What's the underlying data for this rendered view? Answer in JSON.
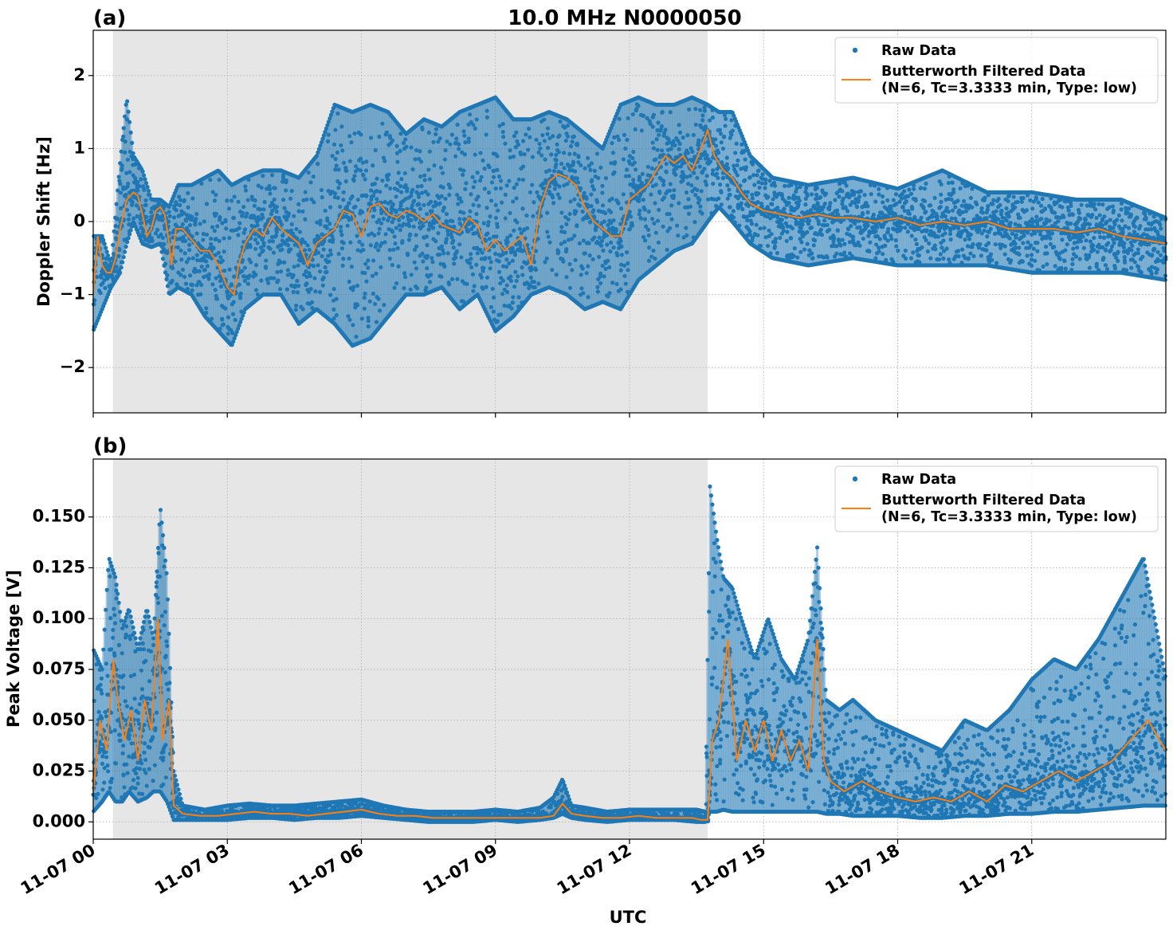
{
  "figure": {
    "title": "10.0 MHz N0000050",
    "xlabel": "UTC",
    "colors": {
      "raw": "#1f77b4",
      "filtered": "#ff7f0e",
      "shade": "#e6e6e6"
    }
  },
  "chart_data": [
    {
      "panel": "(a)",
      "type": "scatter",
      "title": "10.0 MHz N0000050",
      "ylabel": "Doppler Shift [Hz]",
      "xlabel": "",
      "x_unit": "hours UTC on 11-07",
      "xlim": [
        0,
        24
      ],
      "ylim": [
        -2.62,
        2.62
      ],
      "yticks": [
        2,
        1,
        0,
        -1,
        -2
      ],
      "ytick_labels": [
        "2",
        "1",
        "0",
        "−1",
        "−2"
      ],
      "shaded_interval": [
        0.44,
        13.75
      ],
      "grid": true,
      "legend": {
        "placement": "top-right",
        "entries": [
          "Raw Data",
          "Butterworth Filtered Data",
          "(N=6, Tc=3.3333 min, Type: low)"
        ]
      },
      "series": [
        {
          "name": "Butterworth Filtered Data (N=6, Tc=3.3333 min, Type: low)",
          "kind": "line",
          "x": [
            0,
            0.1,
            0.2,
            0.3,
            0.4,
            0.5,
            0.6,
            0.75,
            0.9,
            1.0,
            1.1,
            1.2,
            1.3,
            1.4,
            1.5,
            1.6,
            1.7,
            1.75,
            1.85,
            2.0,
            2.2,
            2.4,
            2.6,
            2.8,
            3.0,
            3.15,
            3.25,
            3.4,
            3.6,
            3.8,
            4.0,
            4.2,
            4.4,
            4.6,
            4.8,
            5.0,
            5.2,
            5.4,
            5.6,
            5.8,
            6.0,
            6.2,
            6.4,
            6.6,
            6.8,
            7.0,
            7.2,
            7.4,
            7.6,
            7.8,
            8.0,
            8.2,
            8.4,
            8.6,
            8.8,
            9.0,
            9.2,
            9.4,
            9.6,
            9.8,
            10.0,
            10.2,
            10.4,
            10.6,
            10.8,
            11.0,
            11.2,
            11.4,
            11.6,
            11.8,
            12.0,
            12.2,
            12.4,
            12.6,
            12.8,
            13.0,
            13.2,
            13.4,
            13.6,
            13.75,
            13.9,
            14.1,
            14.3,
            14.5,
            14.7,
            15.0,
            15.4,
            15.8,
            16.2,
            16.6,
            17.0,
            17.5,
            18.0,
            18.5,
            19.0,
            19.5,
            20.0,
            20.5,
            21.0,
            21.5,
            22.0,
            22.5,
            23.0,
            23.5,
            24.0
          ],
          "y": [
            -1.0,
            -0.2,
            -0.6,
            -0.7,
            -0.7,
            -0.5,
            -0.1,
            0.3,
            0.4,
            0.35,
            0.1,
            -0.2,
            -0.1,
            0.15,
            0.2,
            0.1,
            -0.3,
            -0.6,
            -0.1,
            -0.1,
            -0.25,
            -0.4,
            -0.4,
            -0.6,
            -0.9,
            -1.0,
            -0.6,
            -0.3,
            -0.1,
            -0.2,
            0.05,
            -0.1,
            -0.2,
            -0.3,
            -0.6,
            -0.3,
            -0.2,
            -0.1,
            0.15,
            0.1,
            -0.2,
            0.2,
            0.25,
            0.1,
            0.05,
            0.15,
            0.1,
            0.0,
            0.1,
            -0.05,
            -0.1,
            -0.15,
            0.05,
            -0.05,
            -0.4,
            -0.25,
            -0.4,
            -0.3,
            -0.2,
            -0.6,
            0.2,
            0.55,
            0.65,
            0.6,
            0.5,
            0.2,
            0.0,
            -0.1,
            -0.2,
            -0.2,
            0.3,
            0.4,
            0.5,
            0.7,
            0.9,
            0.8,
            0.9,
            0.7,
            1.0,
            1.25,
            0.9,
            0.7,
            0.6,
            0.4,
            0.25,
            0.15,
            0.1,
            0.05,
            0.1,
            0.05,
            0.05,
            0.0,
            0.05,
            -0.05,
            0.0,
            -0.05,
            0.0,
            -0.1,
            -0.1,
            -0.1,
            -0.15,
            -0.1,
            -0.2,
            -0.25,
            -0.3
          ]
        },
        {
          "name": "Raw Data",
          "kind": "scatter",
          "envelope_x": [
            0,
            0.2,
            0.4,
            0.6,
            0.75,
            0.9,
            1.1,
            1.3,
            1.5,
            1.7,
            1.9,
            2.2,
            2.5,
            2.8,
            3.1,
            3.4,
            3.8,
            4.2,
            4.6,
            5.0,
            5.4,
            5.8,
            6.2,
            6.6,
            7.0,
            7.4,
            7.8,
            8.2,
            8.6,
            9.0,
            9.4,
            9.8,
            10.2,
            10.6,
            11.0,
            11.4,
            11.8,
            12.2,
            12.6,
            13.0,
            13.4,
            13.75,
            14.0,
            14.3,
            14.7,
            15.2,
            16.0,
            17.0,
            18.0,
            19.0,
            20.0,
            21.0,
            22.0,
            23.0,
            24.0
          ],
          "envelope_high": [
            -0.2,
            -0.2,
            -0.6,
            0.8,
            1.7,
            0.9,
            0.7,
            0.3,
            0.3,
            0.2,
            0.5,
            0.5,
            0.6,
            0.7,
            0.5,
            0.6,
            0.7,
            0.7,
            0.6,
            0.9,
            1.6,
            1.5,
            1.6,
            1.5,
            1.2,
            1.4,
            1.3,
            1.5,
            1.6,
            1.7,
            1.4,
            1.4,
            1.5,
            1.4,
            1.2,
            1.0,
            1.6,
            1.7,
            1.6,
            1.6,
            1.7,
            1.6,
            1.5,
            1.5,
            0.9,
            0.6,
            0.5,
            0.6,
            0.45,
            0.7,
            0.4,
            0.4,
            0.3,
            0.3,
            0.05
          ],
          "envelope_low": [
            -1.5,
            -1.2,
            -0.9,
            -0.7,
            -0.3,
            0.0,
            -0.3,
            -0.35,
            -0.3,
            -1.0,
            -0.9,
            -1.0,
            -1.3,
            -1.5,
            -1.7,
            -1.2,
            -1.0,
            -1.0,
            -1.4,
            -1.2,
            -1.4,
            -1.7,
            -1.6,
            -1.3,
            -1.0,
            -1.0,
            -0.9,
            -1.2,
            -1.0,
            -1.5,
            -1.3,
            -1.0,
            -0.9,
            -1.0,
            -1.2,
            -1.1,
            -1.2,
            -0.8,
            -0.6,
            -0.4,
            -0.3,
            0.0,
            0.2,
            0.0,
            -0.3,
            -0.5,
            -0.6,
            -0.5,
            -0.6,
            -0.6,
            -0.6,
            -0.7,
            -0.7,
            -0.7,
            -0.8
          ]
        }
      ]
    },
    {
      "panel": "(b)",
      "type": "scatter",
      "title": "",
      "ylabel": "Peak Voltage [V]",
      "xlabel": "UTC",
      "x_unit": "hours UTC on 11-07",
      "xlim": [
        0,
        24
      ],
      "ylim": [
        -0.0085,
        0.1785
      ],
      "yticks": [
        0.15,
        0.125,
        0.1,
        0.075,
        0.05,
        0.025,
        0.0
      ],
      "ytick_labels": [
        "0.150",
        "0.125",
        "0.100",
        "0.075",
        "0.050",
        "0.025",
        "0.000"
      ],
      "xticks": [
        0,
        3,
        6,
        9,
        12,
        15,
        18,
        21
      ],
      "xtick_labels": [
        "11-07 00",
        "11-07 03",
        "11-07 06",
        "11-07 09",
        "11-07 12",
        "11-07 15",
        "11-07 18",
        "11-07 21"
      ],
      "shaded_interval": [
        0.44,
        13.75
      ],
      "grid": true,
      "legend": {
        "placement": "top-right",
        "entries": [
          "Raw Data",
          "Butterworth Filtered Data",
          "(N=6, Tc=3.3333 min, Type: low)"
        ]
      },
      "series": [
        {
          "name": "Butterworth Filtered Data (N=6, Tc=3.3333 min, Type: low)",
          "kind": "line",
          "x": [
            0,
            0.15,
            0.3,
            0.45,
            0.55,
            0.7,
            0.85,
            1.0,
            1.15,
            1.3,
            1.45,
            1.55,
            1.7,
            1.8,
            2.0,
            2.4,
            2.8,
            3.2,
            3.6,
            4.0,
            4.4,
            4.8,
            5.2,
            5.6,
            6.0,
            6.4,
            6.8,
            7.2,
            7.6,
            8.0,
            8.4,
            8.8,
            9.2,
            9.6,
            10.0,
            10.3,
            10.5,
            10.7,
            11.0,
            11.4,
            11.8,
            12.2,
            12.6,
            13.0,
            13.4,
            13.6,
            13.75,
            13.85,
            14.0,
            14.2,
            14.4,
            14.6,
            14.8,
            15.0,
            15.2,
            15.4,
            15.6,
            15.8,
            16.0,
            16.2,
            16.35,
            16.5,
            16.8,
            17.2,
            17.6,
            18.0,
            18.4,
            18.8,
            19.2,
            19.6,
            20.0,
            20.4,
            20.8,
            21.2,
            21.6,
            22.0,
            22.4,
            22.8,
            23.2,
            23.6,
            24.0
          ],
          "y": [
            0.015,
            0.05,
            0.035,
            0.08,
            0.06,
            0.04,
            0.055,
            0.03,
            0.06,
            0.045,
            0.1,
            0.04,
            0.06,
            0.008,
            0.004,
            0.003,
            0.003,
            0.004,
            0.005,
            0.004,
            0.004,
            0.003,
            0.004,
            0.005,
            0.006,
            0.004,
            0.003,
            0.003,
            0.002,
            0.002,
            0.002,
            0.002,
            0.002,
            0.002,
            0.002,
            0.003,
            0.009,
            0.004,
            0.003,
            0.002,
            0.002,
            0.003,
            0.002,
            0.002,
            0.002,
            0.001,
            0.001,
            0.04,
            0.05,
            0.09,
            0.03,
            0.05,
            0.035,
            0.05,
            0.03,
            0.045,
            0.03,
            0.04,
            0.025,
            0.09,
            0.03,
            0.02,
            0.015,
            0.02,
            0.015,
            0.012,
            0.01,
            0.012,
            0.01,
            0.015,
            0.01,
            0.018,
            0.015,
            0.02,
            0.025,
            0.02,
            0.025,
            0.03,
            0.04,
            0.05,
            0.035
          ]
        },
        {
          "name": "Raw Data",
          "kind": "scatter",
          "envelope_x": [
            0,
            0.2,
            0.35,
            0.5,
            0.65,
            0.8,
            1.0,
            1.2,
            1.35,
            1.5,
            1.65,
            1.8,
            2.0,
            2.5,
            3.0,
            3.5,
            4.0,
            4.5,
            5.0,
            5.5,
            6.0,
            6.5,
            7.0,
            7.5,
            8.0,
            8.5,
            9.0,
            9.5,
            10.0,
            10.3,
            10.5,
            10.7,
            11.0,
            11.5,
            12.0,
            12.5,
            13.0,
            13.5,
            13.7,
            13.8,
            13.95,
            14.1,
            14.3,
            14.5,
            14.8,
            15.1,
            15.4,
            15.7,
            16.0,
            16.2,
            16.4,
            16.7,
            17.0,
            17.5,
            18.0,
            18.5,
            19.0,
            19.5,
            20.0,
            20.5,
            21.0,
            21.5,
            22.0,
            22.5,
            23.0,
            23.5,
            24.0
          ],
          "envelope_high": [
            0.085,
            0.075,
            0.13,
            0.12,
            0.095,
            0.105,
            0.085,
            0.105,
            0.09,
            0.155,
            0.12,
            0.025,
            0.008,
            0.006,
            0.008,
            0.009,
            0.008,
            0.008,
            0.009,
            0.01,
            0.011,
            0.008,
            0.006,
            0.005,
            0.005,
            0.005,
            0.006,
            0.005,
            0.007,
            0.012,
            0.021,
            0.008,
            0.007,
            0.005,
            0.006,
            0.006,
            0.006,
            0.006,
            0.005,
            0.165,
            0.14,
            0.12,
            0.115,
            0.1,
            0.08,
            0.1,
            0.08,
            0.07,
            0.09,
            0.135,
            0.06,
            0.055,
            0.06,
            0.05,
            0.045,
            0.04,
            0.035,
            0.05,
            0.045,
            0.055,
            0.07,
            0.08,
            0.075,
            0.09,
            0.11,
            0.13,
            0.07
          ],
          "envelope_low": [
            0.005,
            0.01,
            0.015,
            0.01,
            0.01,
            0.015,
            0.01,
            0.012,
            0.015,
            0.015,
            0.01,
            0.001,
            0.001,
            0.001,
            0.001,
            0.002,
            0.002,
            0.001,
            0.002,
            0.002,
            0.003,
            0.002,
            0.001,
            0.0,
            0.0,
            0.0,
            0.001,
            0.0,
            0.001,
            0.002,
            0.004,
            0.002,
            0.001,
            0.0,
            0.001,
            0.001,
            0.001,
            0.0,
            0.0,
            0.005,
            0.005,
            0.006,
            0.005,
            0.005,
            0.005,
            0.005,
            0.005,
            0.005,
            0.005,
            0.005,
            0.004,
            0.004,
            0.003,
            0.003,
            0.003,
            0.002,
            0.002,
            0.003,
            0.003,
            0.004,
            0.004,
            0.005,
            0.005,
            0.006,
            0.007,
            0.008,
            0.008
          ]
        }
      ]
    }
  ]
}
